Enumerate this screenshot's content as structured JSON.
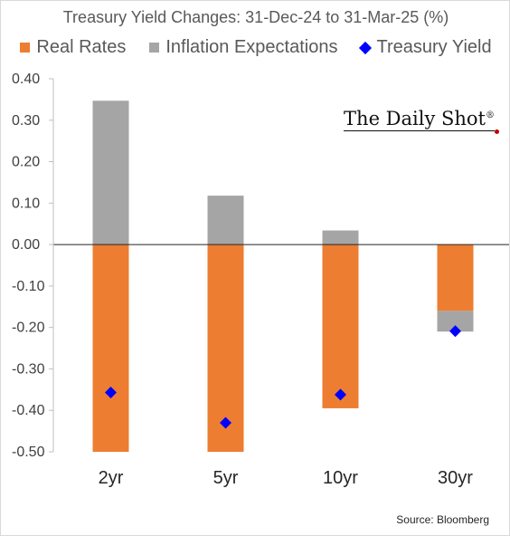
{
  "chart_data": {
    "type": "bar",
    "title": "Treasury Yield Changes: 31-Dec-24 to 31-Mar-25 (%)",
    "categories": [
      "2yr",
      "5yr",
      "10yr",
      "30yr"
    ],
    "series": [
      {
        "name": "Real Rates",
        "kind": "bar",
        "color": "#ED7D31",
        "values": [
          -0.5,
          -0.5,
          -0.395,
          -0.16
        ]
      },
      {
        "name": "Inflation Expectations",
        "kind": "bar",
        "color": "#A5A5A5",
        "values": [
          0.347,
          0.118,
          0.034,
          -0.05
        ]
      },
      {
        "name": "Treasury Yield",
        "kind": "marker-diamond",
        "color": "#0000FF",
        "values": [
          -0.357,
          -0.43,
          -0.362,
          -0.209
        ]
      }
    ],
    "ylim": [
      -0.5,
      0.4
    ],
    "yticks": [
      0.4,
      0.3,
      0.2,
      0.1,
      0.0,
      -0.1,
      -0.2,
      -0.3,
      -0.4,
      -0.5
    ],
    "ytick_labels": [
      "0.40",
      "0.30",
      "0.20",
      "0.10",
      "0.00",
      "-0.10",
      "-0.20",
      "-0.30",
      "-0.40",
      "-0.50"
    ],
    "xlabel": "",
    "ylabel": "",
    "grid": false,
    "legend_position": "top"
  },
  "brand": {
    "name": "The Daily Shot",
    "mark": "®"
  },
  "source": "Source: Bloomberg"
}
